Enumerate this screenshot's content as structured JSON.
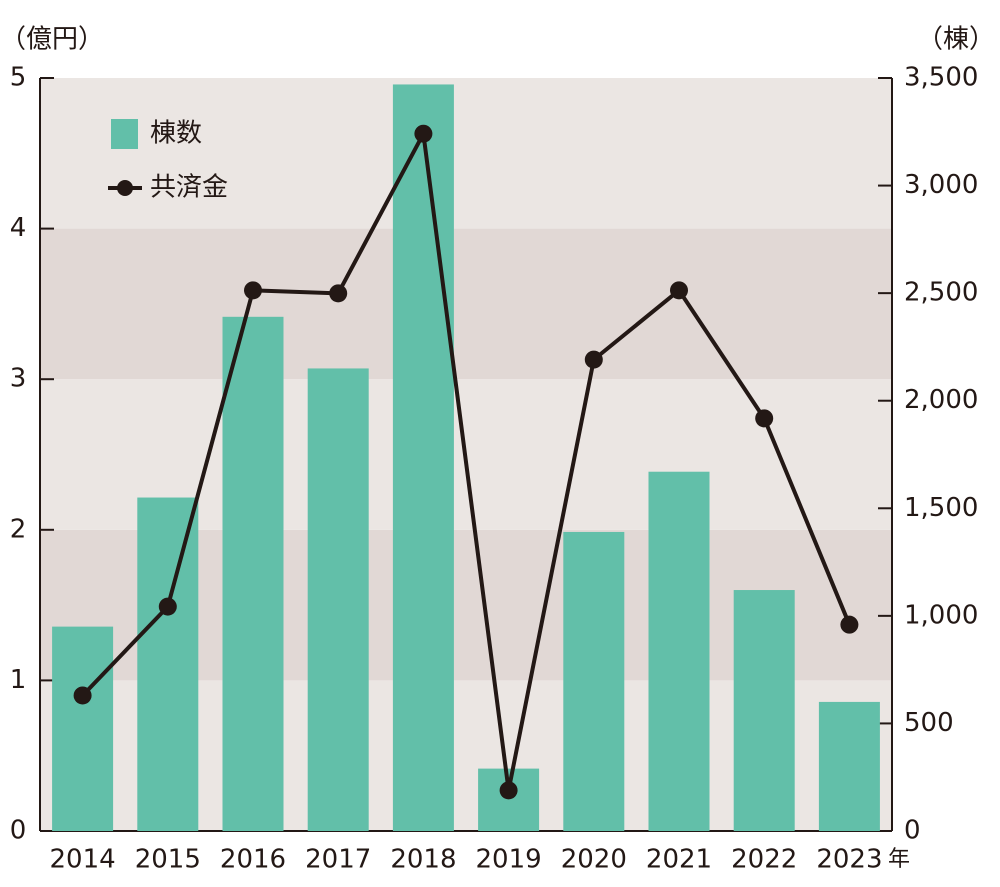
{
  "chart_data": {
    "type": "bar-line",
    "y_label": "（億円）",
    "y2_label": "（棟）",
    "x_unit": "年",
    "categories": [
      "2014",
      "2015",
      "2016",
      "2017",
      "2018",
      "2019",
      "2020",
      "2021",
      "2022",
      "2023"
    ],
    "series": [
      {
        "name": "棟数",
        "type": "bar",
        "axis": "y2",
        "color": "#62bfa9",
        "values": [
          950,
          1550,
          2390,
          2150,
          3470,
          290,
          1390,
          1670,
          1120,
          600
        ]
      },
      {
        "name": "共済金",
        "type": "line",
        "axis": "y",
        "color": "#231815",
        "values": [
          0.9,
          1.49,
          3.59,
          3.57,
          4.63,
          0.27,
          3.13,
          3.59,
          2.74,
          1.37
        ]
      }
    ],
    "ylim": [
      0,
      5
    ],
    "yticks": [
      0,
      1,
      2,
      3,
      4,
      5
    ],
    "y2lim": [
      0,
      3500
    ],
    "y2ticks": [
      0,
      500,
      {
        "value": 1000,
        "label": "1,000"
      },
      {
        "value": 1500,
        "label": "1,500"
      },
      {
        "value": 2000,
        "label": "2,000"
      },
      {
        "value": 2500,
        "label": "2,500"
      },
      {
        "value": 3000,
        "label": "3,000"
      },
      {
        "value": 3500,
        "label": "3,500"
      }
    ],
    "legend": "top-left"
  }
}
